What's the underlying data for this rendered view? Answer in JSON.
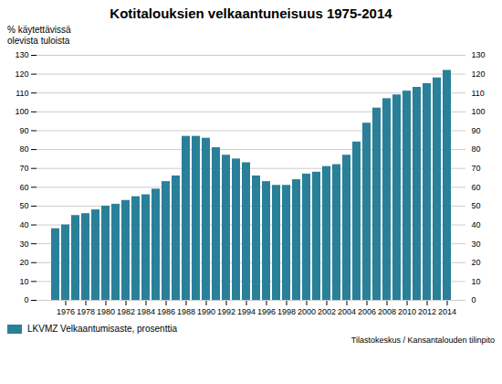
{
  "chart_data": {
    "type": "bar",
    "title": "Kotitalouksien velkaantuneisuus 1975-2014",
    "ylabel": "% käytettävissä\nolevista tuloista",
    "annotations": [
      "Tilastokeskus / Kansantalouden tilinpito"
    ],
    "categories": [
      null,
      1976,
      null,
      1978,
      null,
      1980,
      null,
      1982,
      null,
      1984,
      null,
      1986,
      null,
      1988,
      null,
      1990,
      null,
      1992,
      null,
      1994,
      null,
      1996,
      null,
      1998,
      null,
      2000,
      null,
      2002,
      null,
      2004,
      null,
      2006,
      null,
      2008,
      null,
      2010,
      null,
      2012,
      null,
      2014
    ],
    "series": [
      {
        "name": "LKVMZ Velkaantumisaste, prosenttia",
        "color": "#2a8099",
        "values": [
          38,
          40,
          45,
          46,
          48,
          50,
          51,
          53,
          55,
          56,
          59,
          63,
          66,
          87,
          87,
          86,
          81,
          77,
          75,
          73,
          66,
          63,
          61,
          61,
          64,
          67,
          68,
          71,
          72,
          77,
          84,
          94,
          102,
          107,
          109,
          111,
          113,
          115,
          118,
          122
        ]
      }
    ],
    "ylim": [
      0,
      130
    ],
    "yticks": [
      0,
      10,
      20,
      30,
      40,
      50,
      60,
      70,
      80,
      90,
      100,
      110,
      120,
      130
    ],
    "y2lim": [
      0,
      130
    ],
    "y2ticks": [
      0,
      10,
      20,
      30,
      40,
      50,
      60,
      70,
      80,
      90,
      100,
      110,
      120,
      130
    ],
    "grid": true,
    "legend": "lower left"
  }
}
